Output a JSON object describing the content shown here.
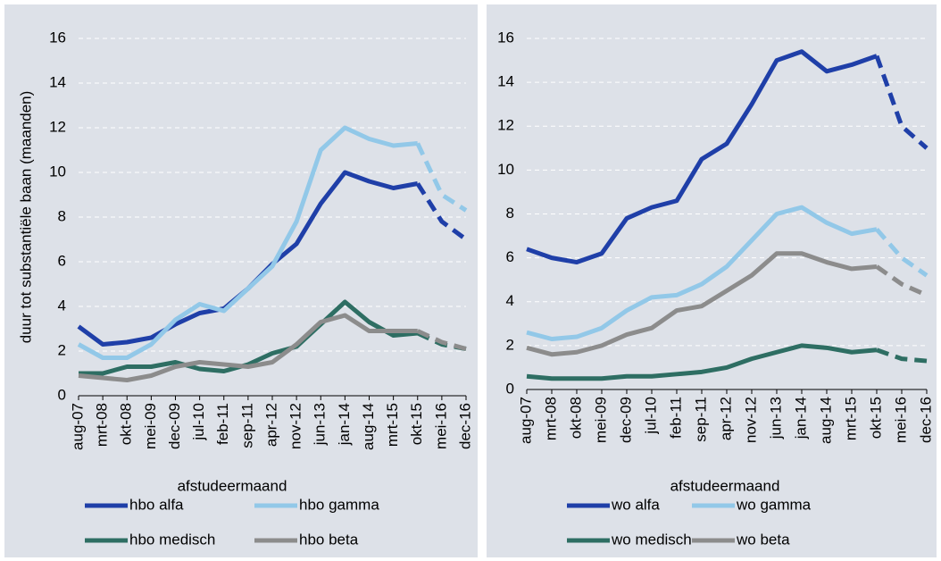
{
  "chart_data": [
    {
      "type": "line",
      "ylabel": "duur tot substantiële baan (maanden)",
      "xlabel": "afstudeermaand",
      "categories": [
        "aug-07",
        "mrt-08",
        "okt-08",
        "mei-09",
        "dec-09",
        "jul-10",
        "feb-11",
        "sep-11",
        "apr-12",
        "nov-12",
        "jun-13",
        "jan-14",
        "aug-14",
        "mrt-15",
        "okt-15",
        "mei-16",
        "dec-16"
      ],
      "dashed_from": "okt-15",
      "ylim": [
        0,
        16
      ],
      "yticks": [
        0,
        2,
        4,
        6,
        8,
        10,
        12,
        14,
        16
      ],
      "grid": true,
      "series": [
        {
          "name": "hbo alfa",
          "color": "#1f3fa8",
          "values": [
            3.1,
            2.3,
            2.4,
            2.6,
            3.2,
            3.7,
            3.9,
            4.8,
            5.9,
            6.8,
            8.6,
            10.0,
            9.6,
            9.3,
            9.5,
            7.8,
            7.0
          ]
        },
        {
          "name": "hbo gamma",
          "color": "#92c8e8",
          "values": [
            2.3,
            1.7,
            1.7,
            2.3,
            3.4,
            4.1,
            3.8,
            4.8,
            5.8,
            7.8,
            11.0,
            12.0,
            11.5,
            11.2,
            11.3,
            9.0,
            8.3
          ]
        },
        {
          "name": "hbo medisch",
          "color": "#2e6e63",
          "values": [
            1.0,
            1.0,
            1.3,
            1.3,
            1.5,
            1.2,
            1.1,
            1.4,
            1.9,
            2.2,
            3.2,
            4.2,
            3.3,
            2.7,
            2.8,
            2.3,
            2.1
          ]
        },
        {
          "name": "hbo beta",
          "color": "#8c8c8c",
          "values": [
            0.9,
            0.8,
            0.7,
            0.9,
            1.3,
            1.5,
            1.4,
            1.3,
            1.5,
            2.3,
            3.3,
            3.6,
            2.9,
            2.9,
            2.9,
            2.4,
            2.1
          ]
        }
      ]
    },
    {
      "type": "line",
      "xlabel": "afstudeermaand",
      "categories": [
        "aug-07",
        "mrt-08",
        "okt-08",
        "mei-09",
        "dec-09",
        "jul-10",
        "feb-11",
        "sep-11",
        "apr-12",
        "nov-12",
        "jun-13",
        "jan-14",
        "aug-14",
        "mrt-15",
        "okt-15",
        "mei-16",
        "dec-16"
      ],
      "dashed_from": "okt-15",
      "ylim": [
        0,
        16
      ],
      "yticks": [
        0,
        2,
        4,
        6,
        8,
        10,
        12,
        14,
        16
      ],
      "grid": true,
      "series": [
        {
          "name": "wo alfa",
          "color": "#1f3fa8",
          "values": [
            6.4,
            6.0,
            5.8,
            6.2,
            7.8,
            8.3,
            8.6,
            10.5,
            11.2,
            13.0,
            15.0,
            15.4,
            14.5,
            14.8,
            15.2,
            12.0,
            11.0
          ]
        },
        {
          "name": "wo gamma",
          "color": "#92c8e8",
          "values": [
            2.6,
            2.3,
            2.4,
            2.8,
            3.6,
            4.2,
            4.3,
            4.8,
            5.6,
            6.8,
            8.0,
            8.3,
            7.6,
            7.1,
            7.3,
            6.0,
            5.2
          ]
        },
        {
          "name": "wo medisch",
          "color": "#2e6e63",
          "values": [
            0.6,
            0.5,
            0.5,
            0.5,
            0.6,
            0.6,
            0.7,
            0.8,
            1.0,
            1.4,
            1.7,
            2.0,
            1.9,
            1.7,
            1.8,
            1.4,
            1.3
          ]
        },
        {
          "name": "wo beta",
          "color": "#8c8c8c",
          "values": [
            1.9,
            1.6,
            1.7,
            2.0,
            2.5,
            2.8,
            3.6,
            3.8,
            4.5,
            5.2,
            6.2,
            6.2,
            5.8,
            5.5,
            5.6,
            4.8,
            4.3
          ]
        }
      ]
    }
  ]
}
